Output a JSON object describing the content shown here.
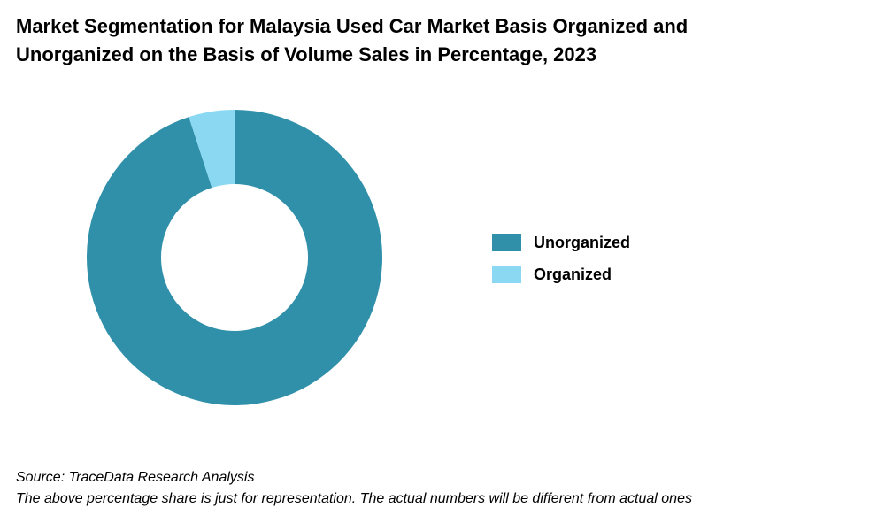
{
  "title_lines": [
    "Market Segmentation for Malaysia Used Car Market Basis Organized and",
    "Unorganized on the Basis of Volume Sales in Percentage, 2023"
  ],
  "footer": {
    "source": "Source: TraceData Research Analysis",
    "note": "The above percentage share is just for representation. The actual numbers will be different from actual ones"
  },
  "chart_data": {
    "type": "pie",
    "variant": "donut",
    "title": "Market Segmentation for Malaysia Used Car Market Basis Organized and Unorganized on the Basis of Volume Sales in Percentage, 2023",
    "categories": [
      "Unorganized",
      "Organized"
    ],
    "values": [
      95,
      5
    ],
    "unit": "%",
    "colors": [
      "#3090aa",
      "#8ad8f2"
    ],
    "legend_position": "right",
    "start_angle_deg": 0,
    "direction": "clockwise"
  }
}
